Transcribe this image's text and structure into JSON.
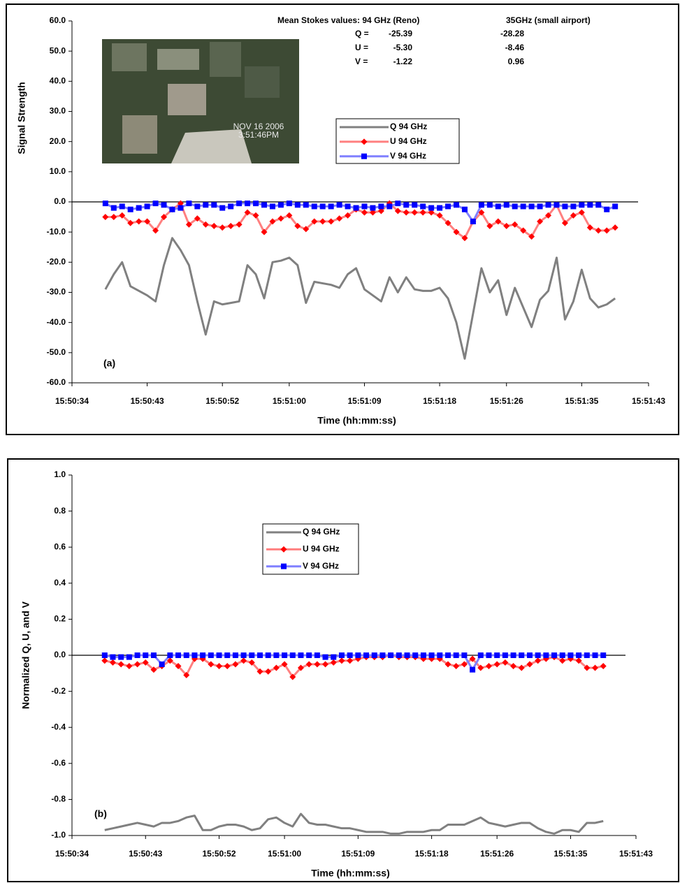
{
  "chart_data": [
    {
      "type": "line",
      "annotation": "(a)",
      "y_label": "Signal Strength",
      "x_label": "Time (hh:mm:ss)",
      "stokes_table": {
        "header": [
          "Mean Stokes values: 94 GHz (Reno)",
          "35GHz (small airport)"
        ],
        "rows": [
          [
            "Q =",
            "-25.39",
            "-28.28"
          ],
          [
            "U =",
            "-5.30",
            "-8.46"
          ],
          [
            "V =",
            "-1.22",
            "0.96"
          ]
        ]
      },
      "image_caption": [
        "NOV 16 2006",
        "3:51:46PM"
      ],
      "xlim": [
        "15:50:34",
        "15:51:43"
      ],
      "xticks": [
        "15:50:34",
        "15:50:43",
        "15:50:52",
        "15:51:00",
        "15:51:09",
        "15:51:18",
        "15:51:26",
        "15:51:35",
        "15:51:43"
      ],
      "ylim": [
        -60,
        60
      ],
      "yticks": [
        {
          "value": -60,
          "label": "-60.0"
        },
        {
          "value": -50,
          "label": "-50.0"
        },
        {
          "value": -40,
          "label": "-40.0"
        },
        {
          "value": -30,
          "label": "-30.0"
        },
        {
          "value": -20,
          "label": "-20.0"
        },
        {
          "value": -10,
          "label": "-10.0"
        },
        {
          "value": 0,
          "label": "0.0"
        },
        {
          "value": 10,
          "label": "10.0"
        },
        {
          "value": 20,
          "label": "20.0"
        },
        {
          "value": 30,
          "label": "30.0"
        },
        {
          "value": 40,
          "label": "40.0"
        },
        {
          "value": 50,
          "label": "50.0"
        },
        {
          "value": 60,
          "label": "60.0"
        }
      ],
      "x": [
        "15:50:38",
        "15:50:39",
        "15:50:40",
        "15:50:41",
        "15:50:42",
        "15:50:43",
        "15:50:44",
        "15:50:45",
        "15:50:46",
        "15:50:47",
        "15:50:48",
        "15:50:49",
        "15:50:50",
        "15:50:51",
        "15:50:52",
        "15:50:53",
        "15:50:54",
        "15:50:55",
        "15:50:56",
        "15:50:57",
        "15:50:58",
        "15:50:59",
        "15:51:00",
        "15:51:01",
        "15:51:02",
        "15:51:03",
        "15:51:04",
        "15:51:05",
        "15:51:06",
        "15:51:07",
        "15:51:08",
        "15:51:09",
        "15:51:10",
        "15:51:11",
        "15:51:12",
        "15:51:13",
        "15:51:14",
        "15:51:15",
        "15:51:16",
        "15:51:17",
        "15:51:18",
        "15:51:19",
        "15:51:20",
        "15:51:21",
        "15:51:22",
        "15:51:23",
        "15:51:24",
        "15:51:25",
        "15:51:26",
        "15:51:27",
        "15:51:28",
        "15:51:29",
        "15:51:30",
        "15:51:31",
        "15:51:32",
        "15:51:33",
        "15:51:34",
        "15:51:35",
        "15:51:36",
        "15:51:37",
        "15:51:38",
        "15:51:39"
      ],
      "series": [
        {
          "name": "Q 94 GHz",
          "color": "#808080",
          "marker": "none",
          "values": [
            -29,
            -24,
            -20,
            -28,
            -29.5,
            -31,
            -33,
            -21,
            -12,
            -16,
            -21,
            -33,
            -44,
            -33,
            -34,
            -33.5,
            -33,
            -21,
            -24,
            -32,
            -20,
            -19.5,
            -18.5,
            -21,
            -33.5,
            -26.5,
            -27,
            -27.5,
            -28.5,
            -24,
            -22,
            -29,
            -31,
            -33,
            -25,
            -30,
            -25,
            -29,
            -29.5,
            -29.5,
            -28.5,
            -32,
            -40,
            -52,
            -37,
            -22,
            -30,
            -26,
            -37.5,
            -28.5,
            -35,
            -41.5,
            -32.5,
            -29.5,
            -18.5,
            -39,
            -33,
            -22.5,
            -32,
            -35,
            -34,
            -32
          ]
        },
        {
          "name": "U 94 GHz",
          "color": "#ff8080",
          "marker": "diamond",
          "marker_color": "#ff0000",
          "values": [
            -5,
            -5,
            -4.5,
            -7,
            -6.5,
            -6.5,
            -9.5,
            -5,
            -2.5,
            -0.5,
            -7.5,
            -5.5,
            -7.5,
            -8,
            -8.5,
            -8,
            -7.5,
            -3.5,
            -4.5,
            -10,
            -6.5,
            -5.5,
            -4.5,
            -8,
            -9,
            -6.5,
            -6.5,
            -6.5,
            -5.5,
            -4.5,
            -2.5,
            -3.5,
            -3.5,
            -3,
            -0.5,
            -3,
            -3.5,
            -3.5,
            -3.5,
            -3.5,
            -4.5,
            -7,
            -10,
            -12,
            -6.5,
            -3.5,
            -8,
            -6.5,
            -8,
            -7.5,
            -9.5,
            -11.5,
            -6.5,
            -4.5,
            -1,
            -7,
            -4.5,
            -3.5,
            -8.5,
            -9.5,
            -9.5,
            -8.5
          ]
        },
        {
          "name": "V 94 GHz",
          "color": "#8080ff",
          "marker": "square",
          "marker_color": "#0000ff",
          "values": [
            -0.5,
            -2,
            -1.5,
            -2.5,
            -2,
            -1.5,
            -0.5,
            -1,
            -2.5,
            -2,
            -0.5,
            -1.5,
            -1,
            -1,
            -2,
            -1.5,
            -0.5,
            -0.5,
            -0.5,
            -1,
            -1.5,
            -1,
            -0.5,
            -1,
            -1,
            -1.5,
            -1.5,
            -1.5,
            -1,
            -1.5,
            -2,
            -1.5,
            -2,
            -1.5,
            -1.5,
            -0.5,
            -1,
            -1,
            -1.5,
            -2,
            -2,
            -1.5,
            -1,
            -2.5,
            -6.5,
            -1,
            -1,
            -1.5,
            -1,
            -1.5,
            -1.5,
            -1.5,
            -1.5,
            -1,
            -1,
            -1.5,
            -1.5,
            -1,
            -1,
            -1,
            -2.5,
            -1.5
          ]
        }
      ]
    },
    {
      "type": "line",
      "annotation": "(b)",
      "y_label": "Normalized Q, U, and V",
      "x_label": "Time (hh:mm:ss)",
      "xlim": [
        "15:50:34",
        "15:51:43"
      ],
      "xticks": [
        "15:50:34",
        "15:50:43",
        "15:50:52",
        "15:51:00",
        "15:51:09",
        "15:51:18",
        "15:51:26",
        "15:51:35",
        "15:51:43"
      ],
      "ylim": [
        -1,
        1
      ],
      "yticks": [
        {
          "value": -1,
          "label": "-1.0"
        },
        {
          "value": -0.8,
          "label": "-0.8"
        },
        {
          "value": -0.6,
          "label": "-0.6"
        },
        {
          "value": -0.4,
          "label": "-0.4"
        },
        {
          "value": -0.2,
          "label": "-0.2"
        },
        {
          "value": 0,
          "label": "0.0"
        },
        {
          "value": 0.2,
          "label": "0.2"
        },
        {
          "value": 0.4,
          "label": "0.4"
        },
        {
          "value": 0.6,
          "label": "0.6"
        },
        {
          "value": 0.8,
          "label": "0.8"
        },
        {
          "value": 1,
          "label": "1.0"
        }
      ],
      "x": [
        "15:50:38",
        "15:50:39",
        "15:50:40",
        "15:50:41",
        "15:50:42",
        "15:50:43",
        "15:50:44",
        "15:50:45",
        "15:50:46",
        "15:50:47",
        "15:50:48",
        "15:50:49",
        "15:50:50",
        "15:50:51",
        "15:50:52",
        "15:50:53",
        "15:50:54",
        "15:50:55",
        "15:50:56",
        "15:50:57",
        "15:50:58",
        "15:50:59",
        "15:51:00",
        "15:51:01",
        "15:51:02",
        "15:51:03",
        "15:51:04",
        "15:51:05",
        "15:51:06",
        "15:51:07",
        "15:51:08",
        "15:51:09",
        "15:51:10",
        "15:51:11",
        "15:51:12",
        "15:51:13",
        "15:51:14",
        "15:51:15",
        "15:51:16",
        "15:51:17",
        "15:51:18",
        "15:51:19",
        "15:51:20",
        "15:51:21",
        "15:51:22",
        "15:51:23",
        "15:51:24",
        "15:51:25",
        "15:51:26",
        "15:51:27",
        "15:51:28",
        "15:51:29",
        "15:51:30",
        "15:51:31",
        "15:51:32",
        "15:51:33",
        "15:51:34",
        "15:51:35",
        "15:51:36",
        "15:51:37",
        "15:51:38",
        "15:51:39"
      ],
      "series": [
        {
          "name": "Q 94 GHz",
          "color": "#808080",
          "marker": "none",
          "values": [
            -0.97,
            -0.96,
            -0.95,
            -0.94,
            -0.93,
            -0.94,
            -0.95,
            -0.93,
            -0.93,
            -0.92,
            -0.9,
            -0.89,
            -0.97,
            -0.97,
            -0.95,
            -0.94,
            -0.94,
            -0.95,
            -0.97,
            -0.96,
            -0.91,
            -0.9,
            -0.93,
            -0.95,
            -0.88,
            -0.93,
            -0.94,
            -0.94,
            -0.95,
            -0.96,
            -0.96,
            -0.97,
            -0.98,
            -0.98,
            -0.98,
            -0.99,
            -0.99,
            -0.98,
            -0.98,
            -0.98,
            -0.97,
            -0.97,
            -0.94,
            -0.94,
            -0.94,
            -0.92,
            -0.9,
            -0.93,
            -0.94,
            -0.95,
            -0.94,
            -0.93,
            -0.93,
            -0.96,
            -0.98,
            -0.99,
            -0.97,
            -0.97,
            -0.98,
            -0.93,
            -0.93,
            -0.92
          ]
        },
        {
          "name": "U 94 GHz",
          "color": "#ff8080",
          "marker": "diamond",
          "marker_color": "#ff0000",
          "values": [
            -0.03,
            -0.04,
            -0.05,
            -0.06,
            -0.05,
            -0.04,
            -0.08,
            -0.06,
            -0.03,
            -0.06,
            -0.11,
            -0.02,
            -0.02,
            -0.05,
            -0.06,
            -0.06,
            -0.05,
            -0.03,
            -0.04,
            -0.09,
            -0.09,
            -0.07,
            -0.05,
            -0.12,
            -0.07,
            -0.05,
            -0.05,
            -0.05,
            -0.04,
            -0.03,
            -0.03,
            -0.02,
            -0.01,
            -0.01,
            -0.01,
            0,
            -0.01,
            -0.01,
            -0.01,
            -0.02,
            -0.02,
            -0.02,
            -0.05,
            -0.06,
            -0.05,
            -0.02,
            -0.07,
            -0.06,
            -0.05,
            -0.04,
            -0.06,
            -0.07,
            -0.05,
            -0.03,
            -0.02,
            -0.01,
            -0.03,
            -0.02,
            -0.03,
            -0.07,
            -0.07,
            -0.06
          ]
        },
        {
          "name": "V 94 GHz",
          "color": "#8080ff",
          "marker": "square",
          "marker_color": "#0000ff",
          "values": [
            0,
            -0.01,
            -0.01,
            -0.01,
            0,
            0,
            0,
            -0.05,
            0,
            0,
            0,
            0,
            0,
            0,
            0,
            0,
            0,
            0,
            0,
            0,
            0,
            0,
            0,
            0,
            0,
            0,
            0,
            -0.01,
            -0.01,
            0,
            0,
            0,
            0,
            0,
            0,
            0,
            0,
            0,
            0,
            0,
            0,
            0,
            0,
            0,
            0,
            -0.08,
            0,
            0,
            0,
            0,
            0,
            0,
            0,
            0,
            0,
            0,
            0,
            0,
            0,
            0,
            0,
            0
          ]
        }
      ]
    }
  ]
}
